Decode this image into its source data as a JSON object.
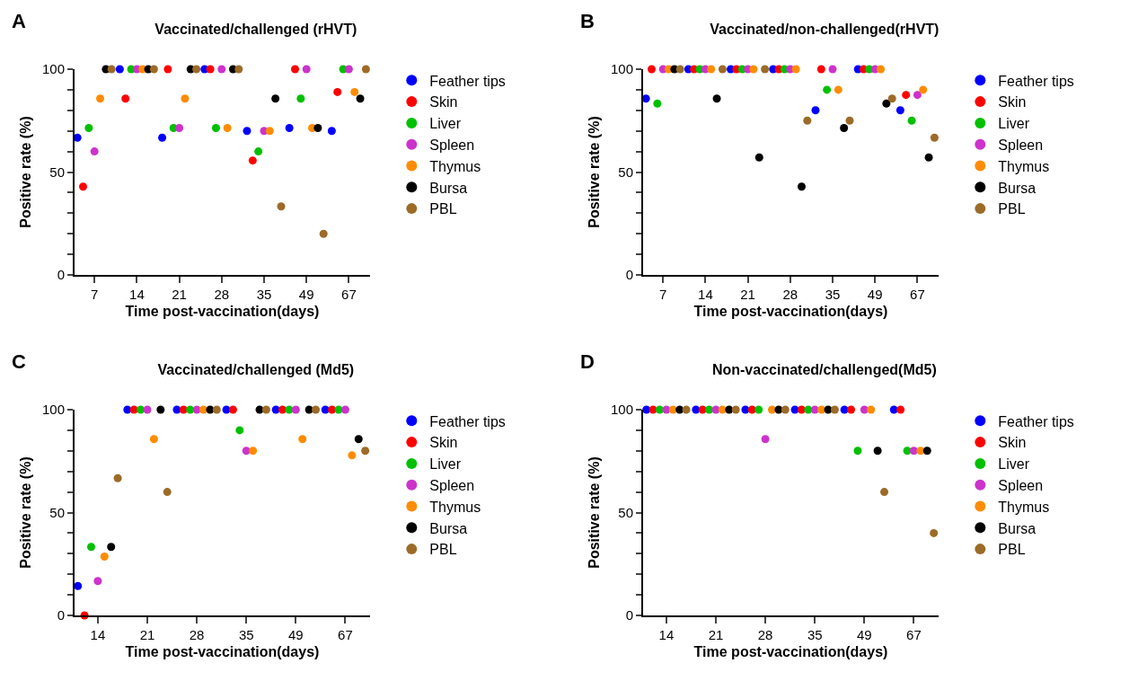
{
  "chart_data": [
    {
      "type": "scatter",
      "title": "Vaccinated/challenged (rHVT)",
      "xlabel": "Time post-vaccination(days)",
      "ylabel": "Positive rate (%)",
      "annotations": [
        "A"
      ],
      "categories": [
        "7",
        "14",
        "21",
        "28",
        "35",
        "49",
        "67"
      ],
      "ylim": [
        0,
        100
      ],
      "yticks": [
        0,
        {
          "value": 10,
          "label": null
        },
        {
          "value": 20,
          "label": null
        },
        {
          "value": 30,
          "label": null
        },
        {
          "value": 40,
          "label": null
        },
        50,
        {
          "value": 60,
          "label": null
        },
        {
          "value": 70,
          "label": null
        },
        {
          "value": 80,
          "label": null
        },
        {
          "value": 90,
          "label": null
        },
        100
      ],
      "grid": false,
      "legend": "right",
      "marker": "circle",
      "series": [
        {
          "name": "Feather tips",
          "color": "#0000ff",
          "values": [
            66.7,
            100,
            66.7,
            100,
            70,
            71.4,
            70
          ]
        },
        {
          "name": "Skin",
          "color": "#ff0000",
          "values": [
            42.9,
            85.7,
            100,
            100,
            55.6,
            100,
            88.9
          ]
        },
        {
          "name": "Liver",
          "color": "#00c000",
          "values": [
            71.4,
            100,
            71.4,
            71.4,
            60,
            85.7,
            100
          ]
        },
        {
          "name": "Spleen",
          "color": "#cc33cc",
          "values": [
            60,
            100,
            71.4,
            100,
            70,
            100,
            100
          ]
        },
        {
          "name": "Thymus",
          "color": "#ff8c00",
          "values": [
            85.7,
            100,
            85.7,
            71.4,
            70,
            71.4,
            88.9
          ]
        },
        {
          "name": "Bursa",
          "color": "#000000",
          "values": [
            100,
            100,
            100,
            100,
            85.7,
            71.4,
            85.7
          ]
        },
        {
          "name": "PBL",
          "color": "#9c6b28",
          "values": [
            100,
            100,
            100,
            100,
            33.3,
            20,
            100
          ]
        }
      ]
    },
    {
      "type": "scatter",
      "title": "Vaccinated/non-challenged(rHVT)",
      "xlabel": "Time post-vaccination(days)",
      "ylabel": "Positive rate (%)",
      "annotations": [
        "B"
      ],
      "categories": [
        "7",
        "14",
        "21",
        "28",
        "35",
        "49",
        "67"
      ],
      "ylim": [
        0,
        100
      ],
      "yticks": [
        0,
        {
          "value": 10,
          "label": null
        },
        {
          "value": 20,
          "label": null
        },
        {
          "value": 30,
          "label": null
        },
        {
          "value": 40,
          "label": null
        },
        50,
        {
          "value": 60,
          "label": null
        },
        {
          "value": 70,
          "label": null
        },
        {
          "value": 80,
          "label": null
        },
        {
          "value": 90,
          "label": null
        },
        100
      ],
      "grid": false,
      "legend": "right",
      "marker": "circle",
      "series": [
        {
          "name": "Feather tips",
          "color": "#0000ff",
          "values": [
            85.7,
            100,
            100,
            100,
            80,
            100,
            80
          ]
        },
        {
          "name": "Skin",
          "color": "#ff0000",
          "values": [
            100,
            100,
            100,
            100,
            100,
            100,
            87.5
          ]
        },
        {
          "name": "Liver",
          "color": "#00c000",
          "values": [
            83.3,
            100,
            100,
            100,
            90,
            100,
            75
          ]
        },
        {
          "name": "Spleen",
          "color": "#cc33cc",
          "values": [
            100,
            100,
            100,
            100,
            100,
            100,
            87.5
          ]
        },
        {
          "name": "Thymus",
          "color": "#ff8c00",
          "values": [
            100,
            100,
            100,
            100,
            90,
            100,
            90
          ]
        },
        {
          "name": "Bursa",
          "color": "#000000",
          "values": [
            100,
            85.7,
            57.1,
            42.9,
            71.4,
            83.3,
            57.1
          ]
        },
        {
          "name": "PBL",
          "color": "#9c6b28",
          "values": [
            100,
            100,
            100,
            75,
            75,
            85.7,
            66.7
          ]
        }
      ]
    },
    {
      "type": "scatter",
      "title": "Vaccinated/challenged (Md5)",
      "xlabel": "Time post-vaccination(days)",
      "ylabel": "Positive rate (%)",
      "annotations": [
        "C"
      ],
      "categories": [
        "14",
        "21",
        "28",
        "35",
        "49",
        "67"
      ],
      "ylim": [
        0,
        100
      ],
      "yticks": [
        0,
        {
          "value": 10,
          "label": null
        },
        {
          "value": 20,
          "label": null
        },
        {
          "value": 30,
          "label": null
        },
        {
          "value": 40,
          "label": null
        },
        50,
        {
          "value": 60,
          "label": null
        },
        {
          "value": 70,
          "label": null
        },
        {
          "value": 80,
          "label": null
        },
        {
          "value": 90,
          "label": null
        },
        100
      ],
      "grid": false,
      "legend": "right",
      "marker": "circle",
      "series": [
        {
          "name": "Feather tips",
          "color": "#0000ff",
          "values": [
            14.3,
            100,
            100,
            100,
            100,
            100
          ]
        },
        {
          "name": "Skin",
          "color": "#ff0000",
          "values": [
            0,
            100,
            100,
            100,
            100,
            100
          ]
        },
        {
          "name": "Liver",
          "color": "#00c000",
          "values": [
            33.3,
            100,
            100,
            90,
            100,
            100
          ]
        },
        {
          "name": "Spleen",
          "color": "#cc33cc",
          "values": [
            16.7,
            100,
            100,
            80,
            100,
            100
          ]
        },
        {
          "name": "Thymus",
          "color": "#ff8c00",
          "values": [
            28.6,
            85.7,
            100,
            80,
            85.7,
            77.8
          ]
        },
        {
          "name": "Bursa",
          "color": "#000000",
          "values": [
            33.3,
            100,
            100,
            100,
            100,
            85.7
          ]
        },
        {
          "name": "PBL",
          "color": "#9c6b28",
          "values": [
            66.7,
            60,
            100,
            100,
            100,
            80
          ]
        }
      ]
    },
    {
      "type": "scatter",
      "title": "Non-vaccinated/challenged(Md5)",
      "xlabel": "Time post-vaccination(days)",
      "ylabel": "Positive rate (%)",
      "annotations": [
        "D"
      ],
      "categories": [
        "14",
        "21",
        "28",
        "35",
        "49",
        "67"
      ],
      "ylim": [
        0,
        100
      ],
      "yticks": [
        0,
        {
          "value": 10,
          "label": null
        },
        {
          "value": 20,
          "label": null
        },
        {
          "value": 30,
          "label": null
        },
        {
          "value": 40,
          "label": null
        },
        50,
        {
          "value": 60,
          "label": null
        },
        {
          "value": 70,
          "label": null
        },
        {
          "value": 80,
          "label": null
        },
        {
          "value": 90,
          "label": null
        },
        100
      ],
      "grid": false,
      "legend": "right",
      "marker": "circle",
      "series": [
        {
          "name": "Feather tips",
          "color": "#0000ff",
          "values": [
            100,
            100,
            100,
            100,
            100,
            100
          ]
        },
        {
          "name": "Skin",
          "color": "#ff0000",
          "values": [
            100,
            100,
            100,
            100,
            100,
            100
          ]
        },
        {
          "name": "Liver",
          "color": "#00c000",
          "values": [
            100,
            100,
            100,
            100,
            80,
            80
          ]
        },
        {
          "name": "Spleen",
          "color": "#cc33cc",
          "values": [
            100,
            100,
            85.7,
            100,
            100,
            80
          ]
        },
        {
          "name": "Thymus",
          "color": "#ff8c00",
          "values": [
            100,
            100,
            100,
            100,
            100,
            80
          ]
        },
        {
          "name": "Bursa",
          "color": "#000000",
          "values": [
            100,
            100,
            100,
            100,
            80,
            80
          ]
        },
        {
          "name": "PBL",
          "color": "#9c6b28",
          "values": [
            100,
            100,
            100,
            100,
            60,
            40
          ]
        }
      ]
    }
  ]
}
